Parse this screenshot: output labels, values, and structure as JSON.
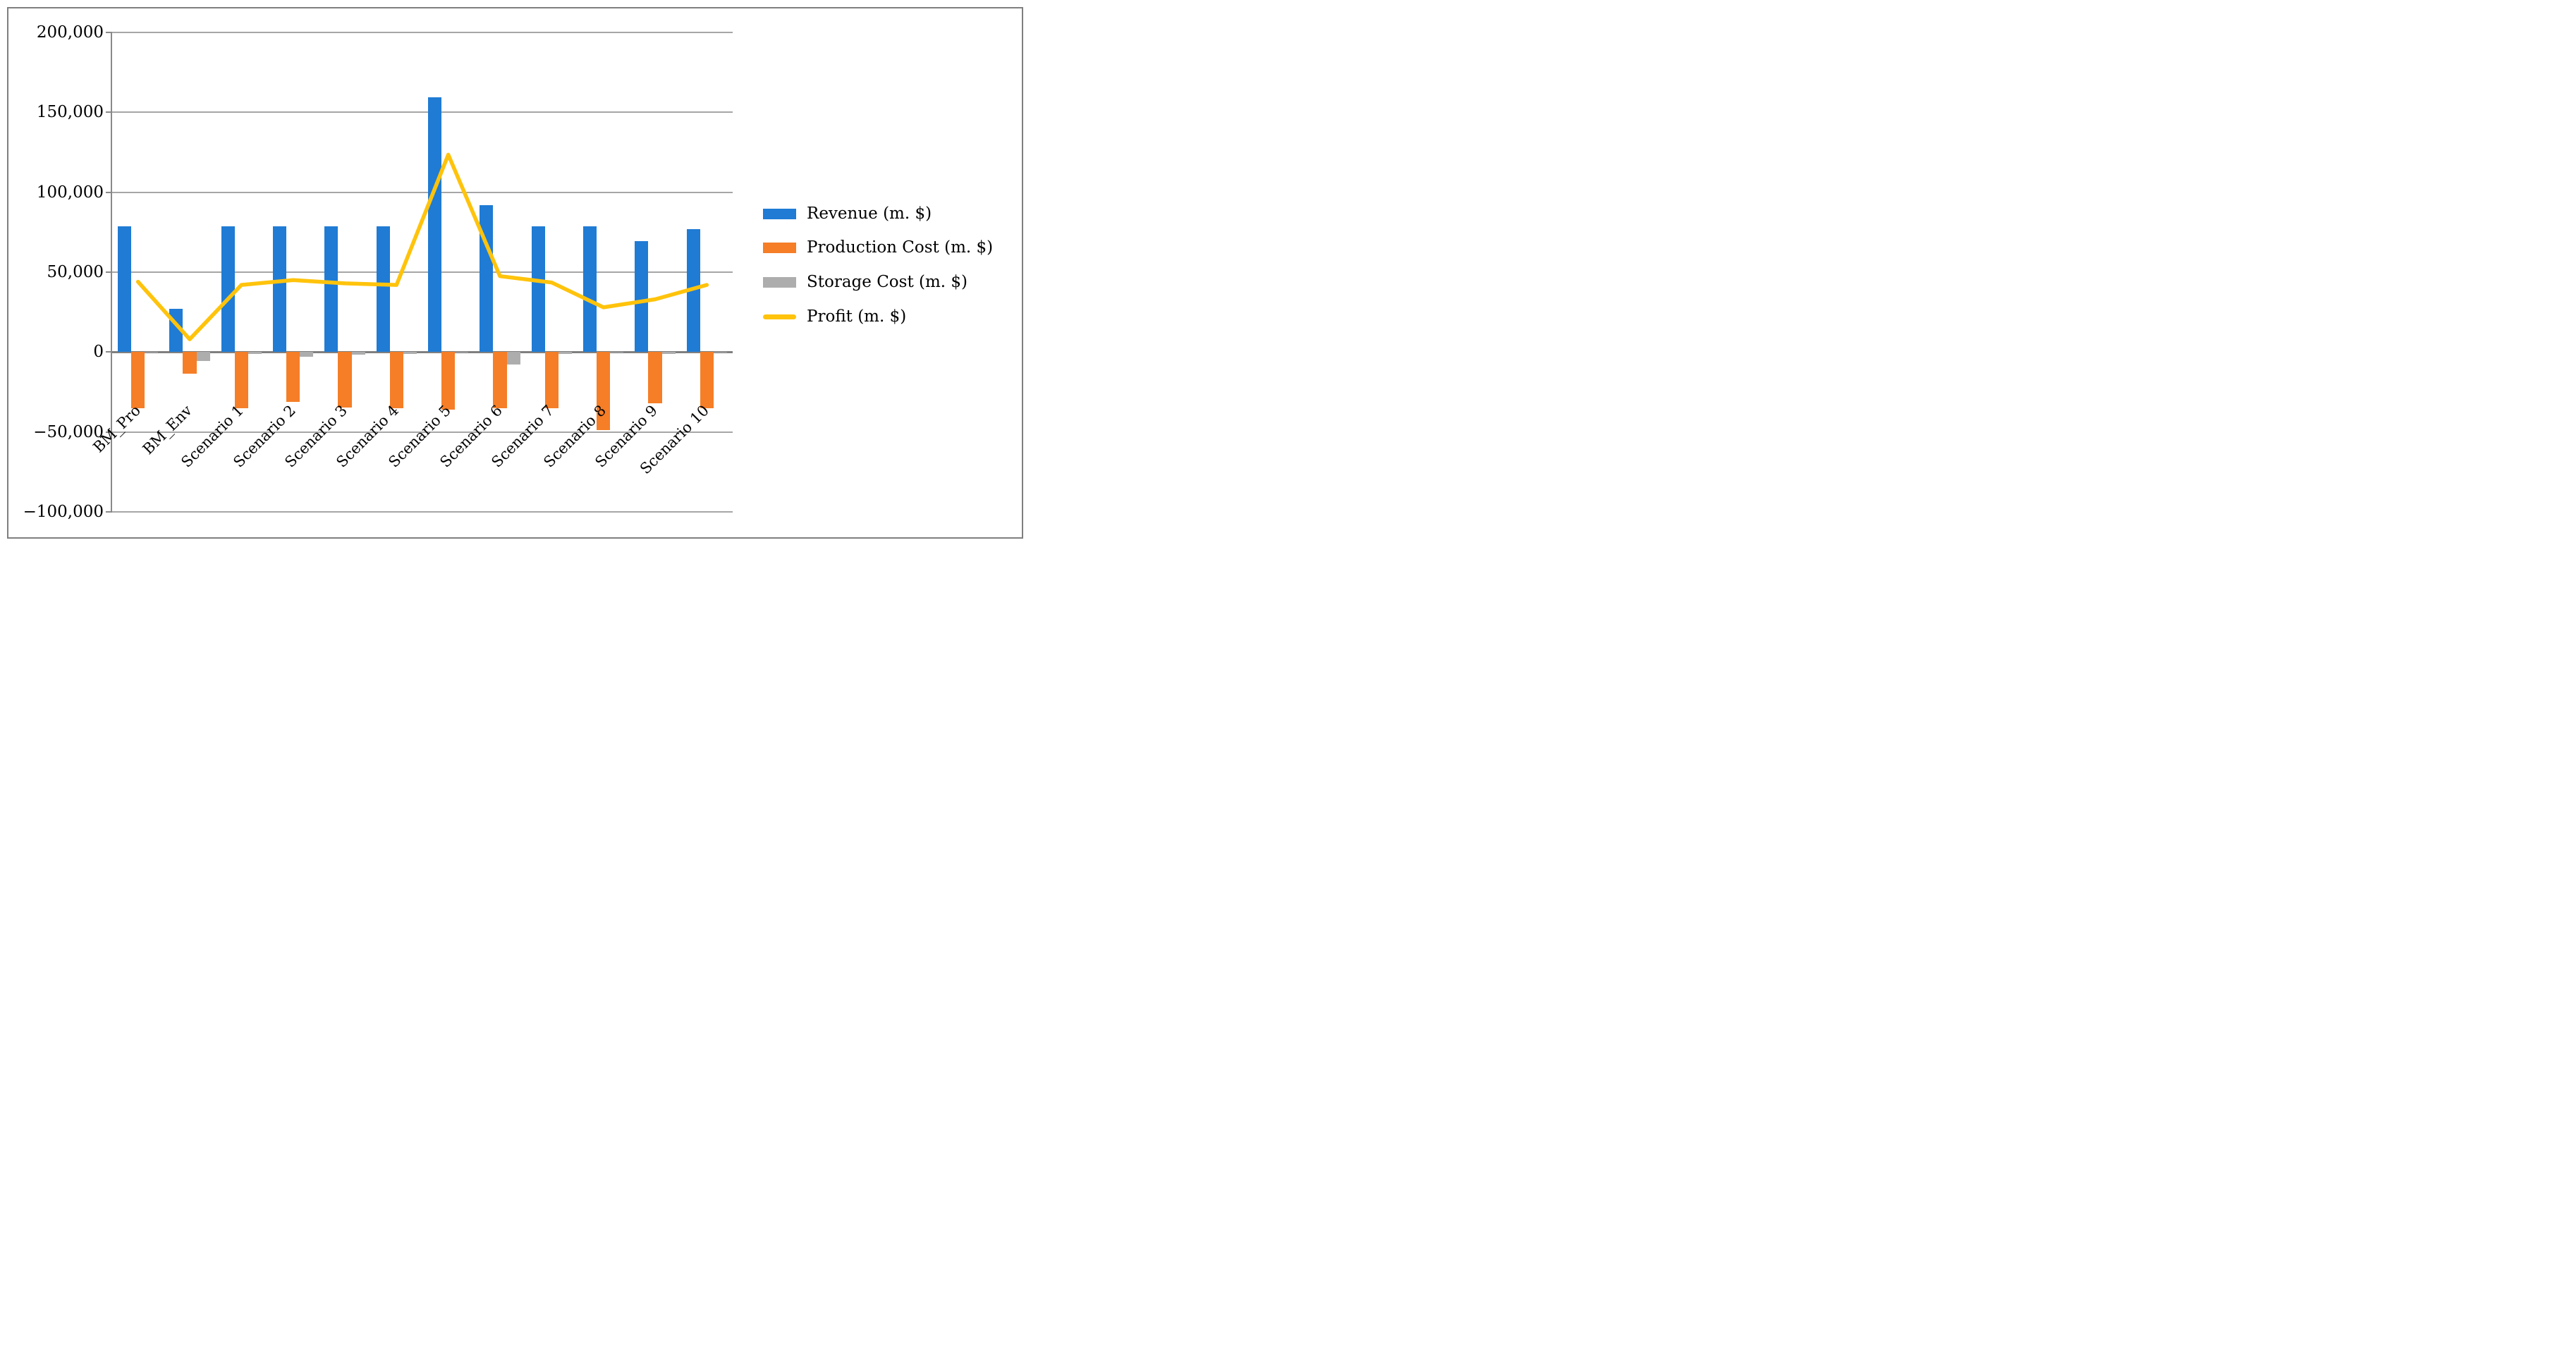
{
  "figure": {
    "title": "",
    "background": "#ffffff",
    "border_color": "#7f7f7f"
  },
  "chart_data": {
    "type": "bar",
    "subtype": "bar+line combo",
    "title": "",
    "xlabel": "",
    "ylabel": "",
    "grid": true,
    "legend_position": "right",
    "categories": [
      "BM_Pro",
      "BM_Env",
      "Scenario 1",
      "Scenario 2",
      "Scenario 3",
      "Scenario 4",
      "Scenario 5",
      "Scenario 6",
      "Scenario 7",
      "Scenario 8",
      "Scenario 9",
      "Scenario 10"
    ],
    "series": [
      {
        "name": "Revenue (m. $)",
        "type": "bar",
        "color": "#1f7bd4",
        "values": [
          78500,
          27000,
          78500,
          78500,
          78500,
          78500,
          159500,
          92000,
          78500,
          78500,
          69500,
          77000
        ]
      },
      {
        "name": "Production Cost (m. $)",
        "type": "bar",
        "color": "#f57e27",
        "values": [
          -35000,
          -13500,
          -35000,
          -31000,
          -34500,
          -35000,
          -36000,
          -35000,
          -35000,
          -49000,
          -32000,
          -35000
        ]
      },
      {
        "name": "Storage Cost (m. $)",
        "type": "bar",
        "color": "#adadad",
        "values": [
          -500,
          -5500,
          -1000,
          -3000,
          -1500,
          -1000,
          -500,
          -8000,
          -1000,
          -500,
          -1000,
          -500
        ]
      },
      {
        "name": "Profit (m. $)",
        "type": "line",
        "color": "#ffc30b",
        "values": [
          44000,
          8000,
          42000,
          45000,
          43000,
          42000,
          123500,
          47500,
          43500,
          28000,
          33000,
          42000
        ]
      }
    ],
    "y_axis": {
      "min": -100000,
      "max": 200000,
      "tick_step": 50000,
      "tick_labels": [
        "200,000",
        "150,000",
        "100,000",
        "50,000",
        "0",
        "−50,000",
        "−100,000"
      ],
      "gridline_color": "#a6a6a6",
      "zero_line_color": "#7f7f7f"
    }
  }
}
